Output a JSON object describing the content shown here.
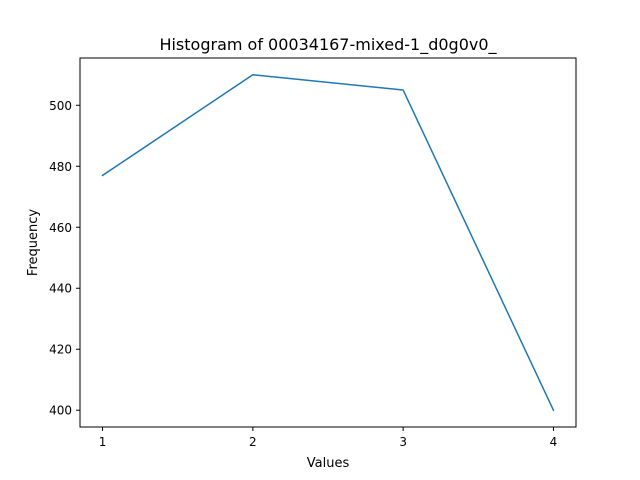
{
  "chart_data": {
    "type": "line",
    "title": "Histogram of 00034167-mixed-1_d0g0v0_",
    "xlabel": "Values",
    "ylabel": "Frequency",
    "x": [
      1,
      2,
      3,
      4
    ],
    "series": [
      {
        "values": [
          477,
          510,
          505,
          400
        ],
        "color": "#1f77b4"
      }
    ],
    "xticks": [
      1,
      2,
      3,
      4
    ],
    "yticks": [
      400,
      420,
      440,
      460,
      480,
      500
    ],
    "xlim": [
      0.85,
      4.15
    ],
    "ylim": [
      394.5,
      515.5
    ],
    "grid": false,
    "legend": "none"
  }
}
